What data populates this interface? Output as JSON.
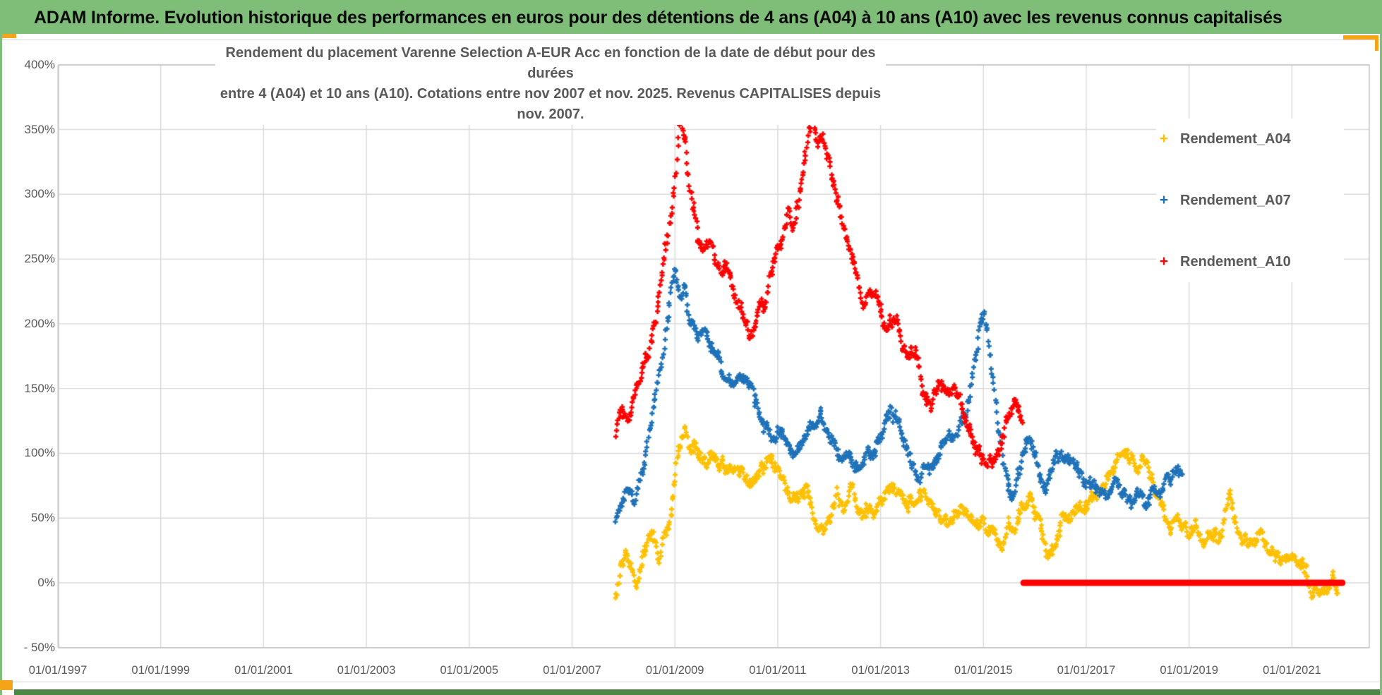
{
  "window": {
    "title_bar": "ADAM Informe. Evolution historique des performances en euros pour des détentions de 4 ans (A04) à 10 ans (A10) avec les revenus connus capitalisés"
  },
  "chart": {
    "title_line1": "Rendement du placement Varenne Selection A-EUR Acc en fonction de la date de début pour des durées",
    "title_line2": "entre 4 (A04) et 10 ans (A10). Cotations entre nov 2007 et nov. 2025. Revenus CAPITALISES depuis nov. 2007."
  },
  "colors": {
    "green_bar": "#7EBE78",
    "orange_accent": "#F4A418",
    "text_gray": "#595959",
    "grid": "#D9D9D9",
    "plot_border": "#BFBFBF",
    "series_a04": "#FFC000",
    "series_a07": "#1F72B8",
    "series_a10": "#FF0000"
  },
  "chart_data": {
    "type": "scatter",
    "title": "Rendement du placement Varenne Selection A-EUR Acc en fonction de la date de début pour des durées entre 4 (A04) et 10 ans (A10). Cotations entre nov 2007 et nov. 2025. Revenus CAPITALISES depuis nov. 2007.",
    "xlabel": "",
    "ylabel": "",
    "x_axis": {
      "tick_labels": [
        "01/01/1997",
        "01/01/1999",
        "01/01/2001",
        "01/01/2003",
        "01/01/2005",
        "01/01/2007",
        "01/01/2009",
        "01/01/2011",
        "01/01/2013",
        "01/01/2015",
        "01/01/2017",
        "01/01/2019",
        "01/01/2021"
      ],
      "tick_years": [
        1997,
        1999,
        2001,
        2003,
        2005,
        2007,
        2009,
        2011,
        2013,
        2015,
        2017,
        2019,
        2021
      ],
      "range_years": [
        1997,
        2022.5
      ],
      "grid": true
    },
    "y_axis": {
      "tick_labels": [
        "400%",
        "350%",
        "300%",
        "250%",
        "200%",
        "150%",
        "100%",
        "50%",
        "0%",
        "- 50%"
      ],
      "tick_values": [
        400,
        350,
        300,
        250,
        200,
        150,
        100,
        50,
        0,
        -50
      ],
      "min": -50,
      "max": 400,
      "unit": "%",
      "grid": true
    },
    "legend_position": "right",
    "marker": "plus",
    "series": [
      {
        "name": "Rendement_A04",
        "color": "#FFC000",
        "start_year": 2007.84,
        "end_year": 2021.9,
        "keyframes": [
          [
            2007.84,
            -6
          ],
          [
            2007.92,
            5
          ],
          [
            2008.05,
            22
          ],
          [
            2008.15,
            12
          ],
          [
            2008.25,
            2
          ],
          [
            2008.4,
            25
          ],
          [
            2008.55,
            40
          ],
          [
            2008.63,
            33
          ],
          [
            2008.7,
            20
          ],
          [
            2008.8,
            38
          ],
          [
            2008.88,
            45
          ],
          [
            2008.95,
            60
          ],
          [
            2009.0,
            78
          ],
          [
            2009.05,
            95
          ],
          [
            2009.1,
            108
          ],
          [
            2009.18,
            120
          ],
          [
            2009.3,
            103
          ],
          [
            2009.4,
            108
          ],
          [
            2009.5,
            97
          ],
          [
            2009.6,
            92
          ],
          [
            2009.7,
            95
          ],
          [
            2009.8,
            88
          ],
          [
            2009.95,
            92
          ],
          [
            2010.1,
            97
          ],
          [
            2010.3,
            88
          ],
          [
            2010.5,
            80
          ],
          [
            2010.7,
            92
          ],
          [
            2010.85,
            95
          ],
          [
            2011.0,
            85
          ],
          [
            2011.15,
            70
          ],
          [
            2011.3,
            58
          ],
          [
            2011.45,
            70
          ],
          [
            2011.55,
            75
          ],
          [
            2011.7,
            60
          ],
          [
            2011.85,
            52
          ],
          [
            2012.0,
            58
          ],
          [
            2012.15,
            68
          ],
          [
            2012.3,
            62
          ],
          [
            2012.45,
            70
          ],
          [
            2012.6,
            55
          ],
          [
            2012.75,
            52
          ],
          [
            2012.9,
            60
          ],
          [
            2013.05,
            68
          ],
          [
            2013.2,
            74
          ],
          [
            2013.35,
            68
          ],
          [
            2013.5,
            60
          ],
          [
            2013.65,
            65
          ],
          [
            2013.8,
            72
          ],
          [
            2014.0,
            65
          ],
          [
            2014.15,
            58
          ],
          [
            2014.3,
            52
          ],
          [
            2014.45,
            48
          ],
          [
            2014.6,
            55
          ],
          [
            2014.75,
            50
          ],
          [
            2014.9,
            45
          ],
          [
            2015.05,
            40
          ],
          [
            2015.2,
            32
          ],
          [
            2015.35,
            25
          ],
          [
            2015.5,
            35
          ],
          [
            2015.65,
            45
          ],
          [
            2015.8,
            55
          ],
          [
            2015.95,
            62
          ],
          [
            2016.1,
            45
          ],
          [
            2016.25,
            22
          ],
          [
            2016.4,
            35
          ],
          [
            2016.55,
            45
          ],
          [
            2016.7,
            52
          ],
          [
            2016.85,
            58
          ],
          [
            2017.0,
            55
          ],
          [
            2017.15,
            62
          ],
          [
            2017.3,
            70
          ],
          [
            2017.45,
            80
          ],
          [
            2017.6,
            90
          ],
          [
            2017.75,
            105
          ],
          [
            2017.85,
            98
          ],
          [
            2018.0,
            92
          ],
          [
            2018.1,
            100
          ],
          [
            2018.25,
            80
          ],
          [
            2018.4,
            60
          ],
          [
            2018.55,
            50
          ],
          [
            2018.7,
            45
          ],
          [
            2018.85,
            40
          ],
          [
            2019.0,
            35
          ],
          [
            2019.15,
            42
          ],
          [
            2019.3,
            38
          ],
          [
            2019.5,
            30
          ],
          [
            2019.65,
            35
          ],
          [
            2019.8,
            72
          ],
          [
            2019.9,
            50
          ],
          [
            2020.05,
            35
          ],
          [
            2020.2,
            30
          ],
          [
            2020.35,
            38
          ],
          [
            2020.5,
            30
          ],
          [
            2020.65,
            22
          ],
          [
            2020.8,
            15
          ],
          [
            2020.95,
            18
          ],
          [
            2021.1,
            12
          ],
          [
            2021.25,
            5
          ],
          [
            2021.4,
            -8
          ],
          [
            2021.55,
            -5
          ],
          [
            2021.7,
            -10
          ],
          [
            2021.8,
            -5
          ],
          [
            2021.9,
            -8
          ]
        ]
      },
      {
        "name": "Rendement_A07",
        "color": "#1F72B8",
        "start_year": 2007.84,
        "end_year": 2018.87,
        "keyframes": [
          [
            2007.84,
            50
          ],
          [
            2007.95,
            62
          ],
          [
            2008.1,
            75
          ],
          [
            2008.2,
            68
          ],
          [
            2008.35,
            85
          ],
          [
            2008.5,
            110
          ],
          [
            2008.65,
            150
          ],
          [
            2008.8,
            185
          ],
          [
            2008.9,
            215
          ],
          [
            2009.0,
            238
          ],
          [
            2009.1,
            222
          ],
          [
            2009.2,
            232
          ],
          [
            2009.3,
            200
          ],
          [
            2009.45,
            185
          ],
          [
            2009.6,
            192
          ],
          [
            2009.75,
            182
          ],
          [
            2009.9,
            168
          ],
          [
            2010.05,
            158
          ],
          [
            2010.2,
            150
          ],
          [
            2010.35,
            155
          ],
          [
            2010.5,
            145
          ],
          [
            2010.65,
            132
          ],
          [
            2010.8,
            120
          ],
          [
            2010.95,
            108
          ],
          [
            2011.1,
            112
          ],
          [
            2011.25,
            102
          ],
          [
            2011.4,
            108
          ],
          [
            2011.55,
            112
          ],
          [
            2011.7,
            122
          ],
          [
            2011.85,
            128
          ],
          [
            2012.0,
            112
          ],
          [
            2012.15,
            105
          ],
          [
            2012.3,
            98
          ],
          [
            2012.45,
            95
          ],
          [
            2012.6,
            90
          ],
          [
            2012.75,
            98
          ],
          [
            2012.9,
            105
          ],
          [
            2013.05,
            118
          ],
          [
            2013.2,
            128
          ],
          [
            2013.35,
            118
          ],
          [
            2013.5,
            105
          ],
          [
            2013.65,
            95
          ],
          [
            2013.8,
            90
          ],
          [
            2013.95,
            85
          ],
          [
            2014.1,
            95
          ],
          [
            2014.25,
            105
          ],
          [
            2014.4,
            112
          ],
          [
            2014.55,
            120
          ],
          [
            2014.7,
            135
          ],
          [
            2014.85,
            165
          ],
          [
            2014.95,
            195
          ],
          [
            2015.02,
            205
          ],
          [
            2015.1,
            185
          ],
          [
            2015.2,
            155
          ],
          [
            2015.3,
            120
          ],
          [
            2015.42,
            90
          ],
          [
            2015.55,
            68
          ],
          [
            2015.68,
            80
          ],
          [
            2015.8,
            105
          ],
          [
            2015.92,
            112
          ],
          [
            2016.05,
            95
          ],
          [
            2016.2,
            72
          ],
          [
            2016.35,
            85
          ],
          [
            2016.5,
            92
          ],
          [
            2016.65,
            85
          ],
          [
            2016.8,
            88
          ],
          [
            2016.95,
            82
          ],
          [
            2017.1,
            78
          ],
          [
            2017.25,
            72
          ],
          [
            2017.4,
            78
          ],
          [
            2017.55,
            82
          ],
          [
            2017.7,
            75
          ],
          [
            2017.85,
            72
          ],
          [
            2018.0,
            65
          ],
          [
            2018.15,
            62
          ],
          [
            2018.3,
            68
          ],
          [
            2018.45,
            72
          ],
          [
            2018.6,
            78
          ],
          [
            2018.75,
            88
          ],
          [
            2018.87,
            90
          ]
        ]
      },
      {
        "name": "Rendement_A10",
        "color": "#FF0000",
        "start_year": 2007.84,
        "end_year": 2015.76,
        "keyframes": [
          [
            2007.84,
            112
          ],
          [
            2007.95,
            132
          ],
          [
            2008.1,
            118
          ],
          [
            2008.25,
            148
          ],
          [
            2008.4,
            165
          ],
          [
            2008.55,
            188
          ],
          [
            2008.7,
            225
          ],
          [
            2008.85,
            262
          ],
          [
            2009.0,
            305
          ],
          [
            2009.1,
            352
          ],
          [
            2009.18,
            335
          ],
          [
            2009.28,
            305
          ],
          [
            2009.38,
            288
          ],
          [
            2009.48,
            258
          ],
          [
            2009.6,
            265
          ],
          [
            2009.7,
            272
          ],
          [
            2009.8,
            252
          ],
          [
            2009.9,
            242
          ],
          [
            2010.0,
            255
          ],
          [
            2010.15,
            228
          ],
          [
            2010.3,
            205
          ],
          [
            2010.45,
            188
          ],
          [
            2010.6,
            208
          ],
          [
            2010.75,
            215
          ],
          [
            2010.9,
            238
          ],
          [
            2011.05,
            262
          ],
          [
            2011.2,
            292
          ],
          [
            2011.3,
            275
          ],
          [
            2011.42,
            295
          ],
          [
            2011.55,
            338
          ],
          [
            2011.68,
            362
          ],
          [
            2011.78,
            338
          ],
          [
            2011.88,
            348
          ],
          [
            2012.0,
            322
          ],
          [
            2012.1,
            298
          ],
          [
            2012.25,
            282
          ],
          [
            2012.4,
            255
          ],
          [
            2012.55,
            232
          ],
          [
            2012.7,
            222
          ],
          [
            2012.85,
            228
          ],
          [
            2013.0,
            215
          ],
          [
            2013.1,
            195
          ],
          [
            2013.25,
            205
          ],
          [
            2013.4,
            188
          ],
          [
            2013.55,
            175
          ],
          [
            2013.7,
            182
          ],
          [
            2013.85,
            155
          ],
          [
            2014.0,
            148
          ],
          [
            2014.15,
            152
          ],
          [
            2014.3,
            140
          ],
          [
            2014.45,
            145
          ],
          [
            2014.6,
            132
          ],
          [
            2014.75,
            118
          ],
          [
            2014.9,
            100
          ],
          [
            2015.05,
            88
          ],
          [
            2015.2,
            95
          ],
          [
            2015.35,
            112
          ],
          [
            2015.5,
            128
          ],
          [
            2015.65,
            140
          ],
          [
            2015.76,
            128
          ]
        ],
        "zero_segment": {
          "from_year": 2015.78,
          "to_year": 2021.98,
          "value": 0
        }
      }
    ]
  },
  "legend": {
    "items": [
      {
        "label": "Rendement_A04",
        "marker": "+",
        "color": "#FFC000"
      },
      {
        "label": "Rendement_A07",
        "marker": "+",
        "color": "#1F72B8"
      },
      {
        "label": "Rendement_A10",
        "marker": "+",
        "color": "#FF0000"
      }
    ]
  }
}
